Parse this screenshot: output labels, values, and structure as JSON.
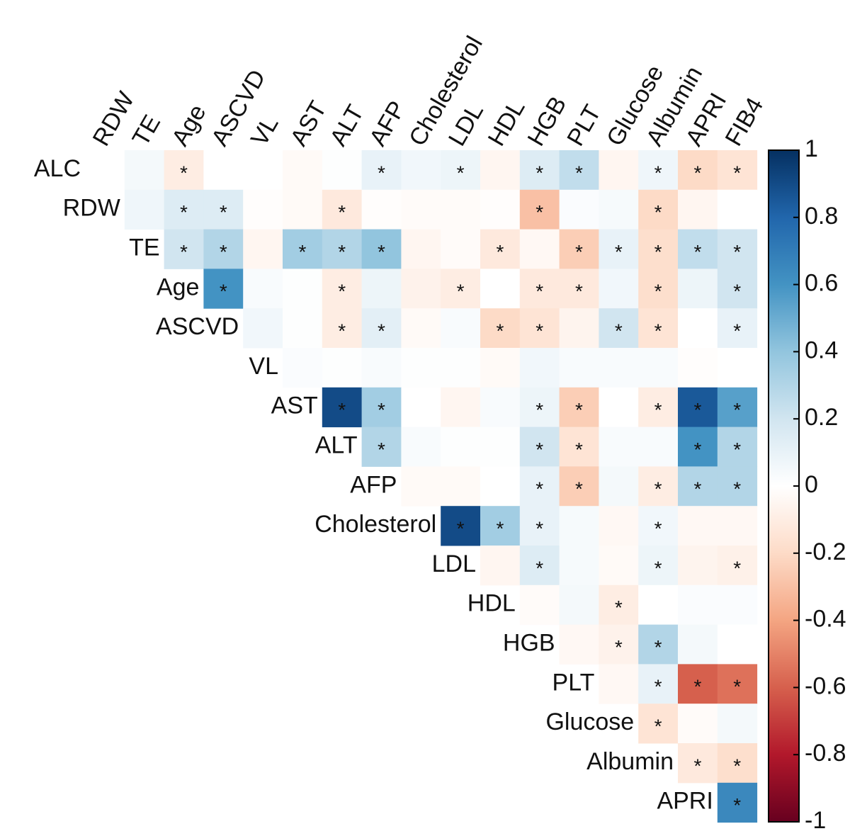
{
  "chart_data": {
    "type": "heatmap",
    "x_labels": [
      "RDW",
      "TE",
      "Age",
      "ASCVD",
      "VL",
      "AST",
      "ALT",
      "AFP",
      "Cholesterol",
      "LDL",
      "HDL",
      "HGB",
      "PLT",
      "Glucose",
      "Albumin",
      "APRI",
      "FIB4"
    ],
    "y_labels": [
      "ALC",
      "RDW",
      "TE",
      "Age",
      "ASCVD",
      "VL",
      "AST",
      "ALT",
      "AFP",
      "Cholesterol",
      "LDL",
      "HDL",
      "HGB",
      "PLT",
      "Glucose",
      "Albumin",
      "APRI"
    ],
    "values": [
      [
        0,
        0.05,
        -0.1,
        0,
        0,
        -0.03,
        0.01,
        0.1,
        0.06,
        0.08,
        -0.05,
        0.15,
        0.25,
        -0.05,
        0.07,
        -0.2,
        -0.15
      ],
      [
        null,
        0.07,
        0.15,
        0.15,
        -0.01,
        -0.03,
        -0.12,
        -0.01,
        -0.02,
        -0.02,
        -0.01,
        -0.3,
        0.02,
        0.04,
        -0.2,
        -0.05,
        0
      ],
      [
        null,
        null,
        0.2,
        0.3,
        -0.05,
        0.35,
        0.3,
        0.4,
        -0.05,
        -0.02,
        -0.12,
        -0.04,
        -0.25,
        0.1,
        -0.18,
        0.25,
        0.2
      ],
      [
        null,
        null,
        null,
        0.6,
        0.03,
        0.01,
        -0.1,
        0.08,
        -0.07,
        -0.1,
        0,
        -0.12,
        -0.12,
        0.06,
        -0.18,
        0.08,
        0.2
      ],
      [
        null,
        null,
        null,
        null,
        0.06,
        0.01,
        -0.1,
        0.12,
        -0.03,
        0.03,
        -0.2,
        -0.15,
        -0.06,
        0.2,
        -0.15,
        0,
        0.1
      ],
      [
        null,
        null,
        null,
        null,
        null,
        0.02,
        0.01,
        0.03,
        0.01,
        0.01,
        -0.03,
        0.06,
        0.03,
        0.03,
        0.03,
        -0.01,
        0
      ],
      [
        null,
        null,
        null,
        null,
        null,
        null,
        0.9,
        0.35,
        0,
        -0.05,
        0.03,
        0.08,
        -0.25,
        0,
        -0.1,
        0.85,
        0.55
      ],
      [
        null,
        null,
        null,
        null,
        null,
        null,
        null,
        0.3,
        0.03,
        0.01,
        0.01,
        0.2,
        -0.15,
        0.03,
        0.03,
        0.6,
        0.3
      ],
      [
        null,
        null,
        null,
        null,
        null,
        null,
        null,
        null,
        -0.03,
        -0.03,
        0,
        0.1,
        -0.25,
        0.05,
        -0.1,
        0.3,
        0.3
      ],
      [
        null,
        null,
        null,
        null,
        null,
        null,
        null,
        null,
        null,
        0.9,
        0.35,
        0.1,
        0.04,
        -0.04,
        0.06,
        -0.04,
        -0.04
      ],
      [
        null,
        null,
        null,
        null,
        null,
        null,
        null,
        null,
        null,
        null,
        -0.05,
        0.15,
        0.04,
        -0.03,
        0.08,
        -0.06,
        -0.08
      ],
      [
        null,
        null,
        null,
        null,
        null,
        null,
        null,
        null,
        null,
        null,
        null,
        -0.02,
        0.05,
        -0.1,
        0,
        0.02,
        0.02
      ],
      [
        null,
        null,
        null,
        null,
        null,
        null,
        null,
        null,
        null,
        null,
        null,
        null,
        -0.04,
        -0.07,
        0.3,
        0.05,
        0
      ],
      [
        null,
        null,
        null,
        null,
        null,
        null,
        null,
        null,
        null,
        null,
        null,
        null,
        null,
        -0.04,
        0.1,
        -0.6,
        -0.55
      ],
      [
        null,
        null,
        null,
        null,
        null,
        null,
        null,
        null,
        null,
        null,
        null,
        null,
        null,
        null,
        -0.15,
        -0.02,
        0.05
      ],
      [
        null,
        null,
        null,
        null,
        null,
        null,
        null,
        null,
        null,
        null,
        null,
        null,
        null,
        null,
        null,
        -0.12,
        -0.18
      ],
      [
        null,
        null,
        null,
        null,
        null,
        null,
        null,
        null,
        null,
        null,
        null,
        null,
        null,
        null,
        null,
        null,
        0.65
      ]
    ],
    "cell_labels": [
      [
        null,
        null,
        "*",
        null,
        null,
        null,
        null,
        "*",
        null,
        "*",
        null,
        "*",
        "*",
        null,
        "*",
        "*",
        "*"
      ],
      [
        null,
        null,
        "*",
        "*",
        null,
        null,
        "*",
        null,
        null,
        null,
        null,
        "*",
        null,
        null,
        "*",
        null,
        null
      ],
      [
        null,
        null,
        "*",
        "*",
        null,
        "*",
        "*",
        "*",
        null,
        null,
        "*",
        null,
        "*",
        "*",
        "*",
        "*",
        "*"
      ],
      [
        null,
        null,
        null,
        "*",
        null,
        null,
        "*",
        null,
        null,
        "*",
        null,
        "*",
        "*",
        null,
        "*",
        null,
        "*"
      ],
      [
        null,
        null,
        null,
        null,
        null,
        null,
        "*",
        "*",
        null,
        null,
        "*",
        "*",
        null,
        "*",
        "*",
        null,
        "*"
      ],
      [
        null,
        null,
        null,
        null,
        null,
        null,
        null,
        null,
        null,
        null,
        null,
        null,
        null,
        null,
        null,
        null,
        null
      ],
      [
        null,
        null,
        null,
        null,
        null,
        null,
        "*",
        "*",
        null,
        null,
        null,
        "*",
        "*",
        null,
        "*",
        "*",
        "*"
      ],
      [
        null,
        null,
        null,
        null,
        null,
        null,
        null,
        "*",
        null,
        null,
        null,
        "*",
        "*",
        null,
        null,
        "*",
        "*"
      ],
      [
        null,
        null,
        null,
        null,
        null,
        null,
        null,
        null,
        null,
        null,
        null,
        "*",
        "*",
        null,
        "*",
        "*",
        "*"
      ],
      [
        null,
        null,
        null,
        null,
        null,
        null,
        null,
        null,
        null,
        "*",
        "*",
        "*",
        null,
        null,
        "*",
        null,
        null
      ],
      [
        null,
        null,
        null,
        null,
        null,
        null,
        null,
        null,
        null,
        null,
        null,
        "*",
        null,
        null,
        "*",
        null,
        "*"
      ],
      [
        null,
        null,
        null,
        null,
        null,
        null,
        null,
        null,
        null,
        null,
        null,
        null,
        null,
        "*",
        null,
        null,
        null
      ],
      [
        null,
        null,
        null,
        null,
        null,
        null,
        null,
        null,
        null,
        null,
        null,
        null,
        null,
        "*",
        "*",
        null,
        null
      ],
      [
        null,
        null,
        null,
        null,
        null,
        null,
        null,
        null,
        null,
        null,
        null,
        null,
        null,
        null,
        "*",
        "*",
        "*"
      ],
      [
        null,
        null,
        null,
        null,
        null,
        null,
        null,
        null,
        null,
        null,
        null,
        null,
        null,
        null,
        "*",
        null,
        null
      ],
      [
        null,
        null,
        null,
        null,
        null,
        null,
        null,
        null,
        null,
        null,
        null,
        null,
        null,
        null,
        null,
        "*",
        "*"
      ],
      [
        null,
        null,
        null,
        null,
        null,
        null,
        null,
        null,
        null,
        null,
        null,
        null,
        null,
        null,
        null,
        null,
        "*"
      ]
    ],
    "zlim": [
      -1,
      1
    ],
    "zticks": [
      1,
      0.8,
      0.6,
      0.4,
      0.2,
      0,
      -0.2,
      -0.4,
      -0.6,
      -0.8,
      -1
    ],
    "colormap": [
      "#67001f",
      "#b2182b",
      "#d6604d",
      "#f4a582",
      "#fddbc7",
      "#ffffff",
      "#d1e5f0",
      "#92c5de",
      "#4393c3",
      "#2166ac",
      "#053061"
    ]
  }
}
